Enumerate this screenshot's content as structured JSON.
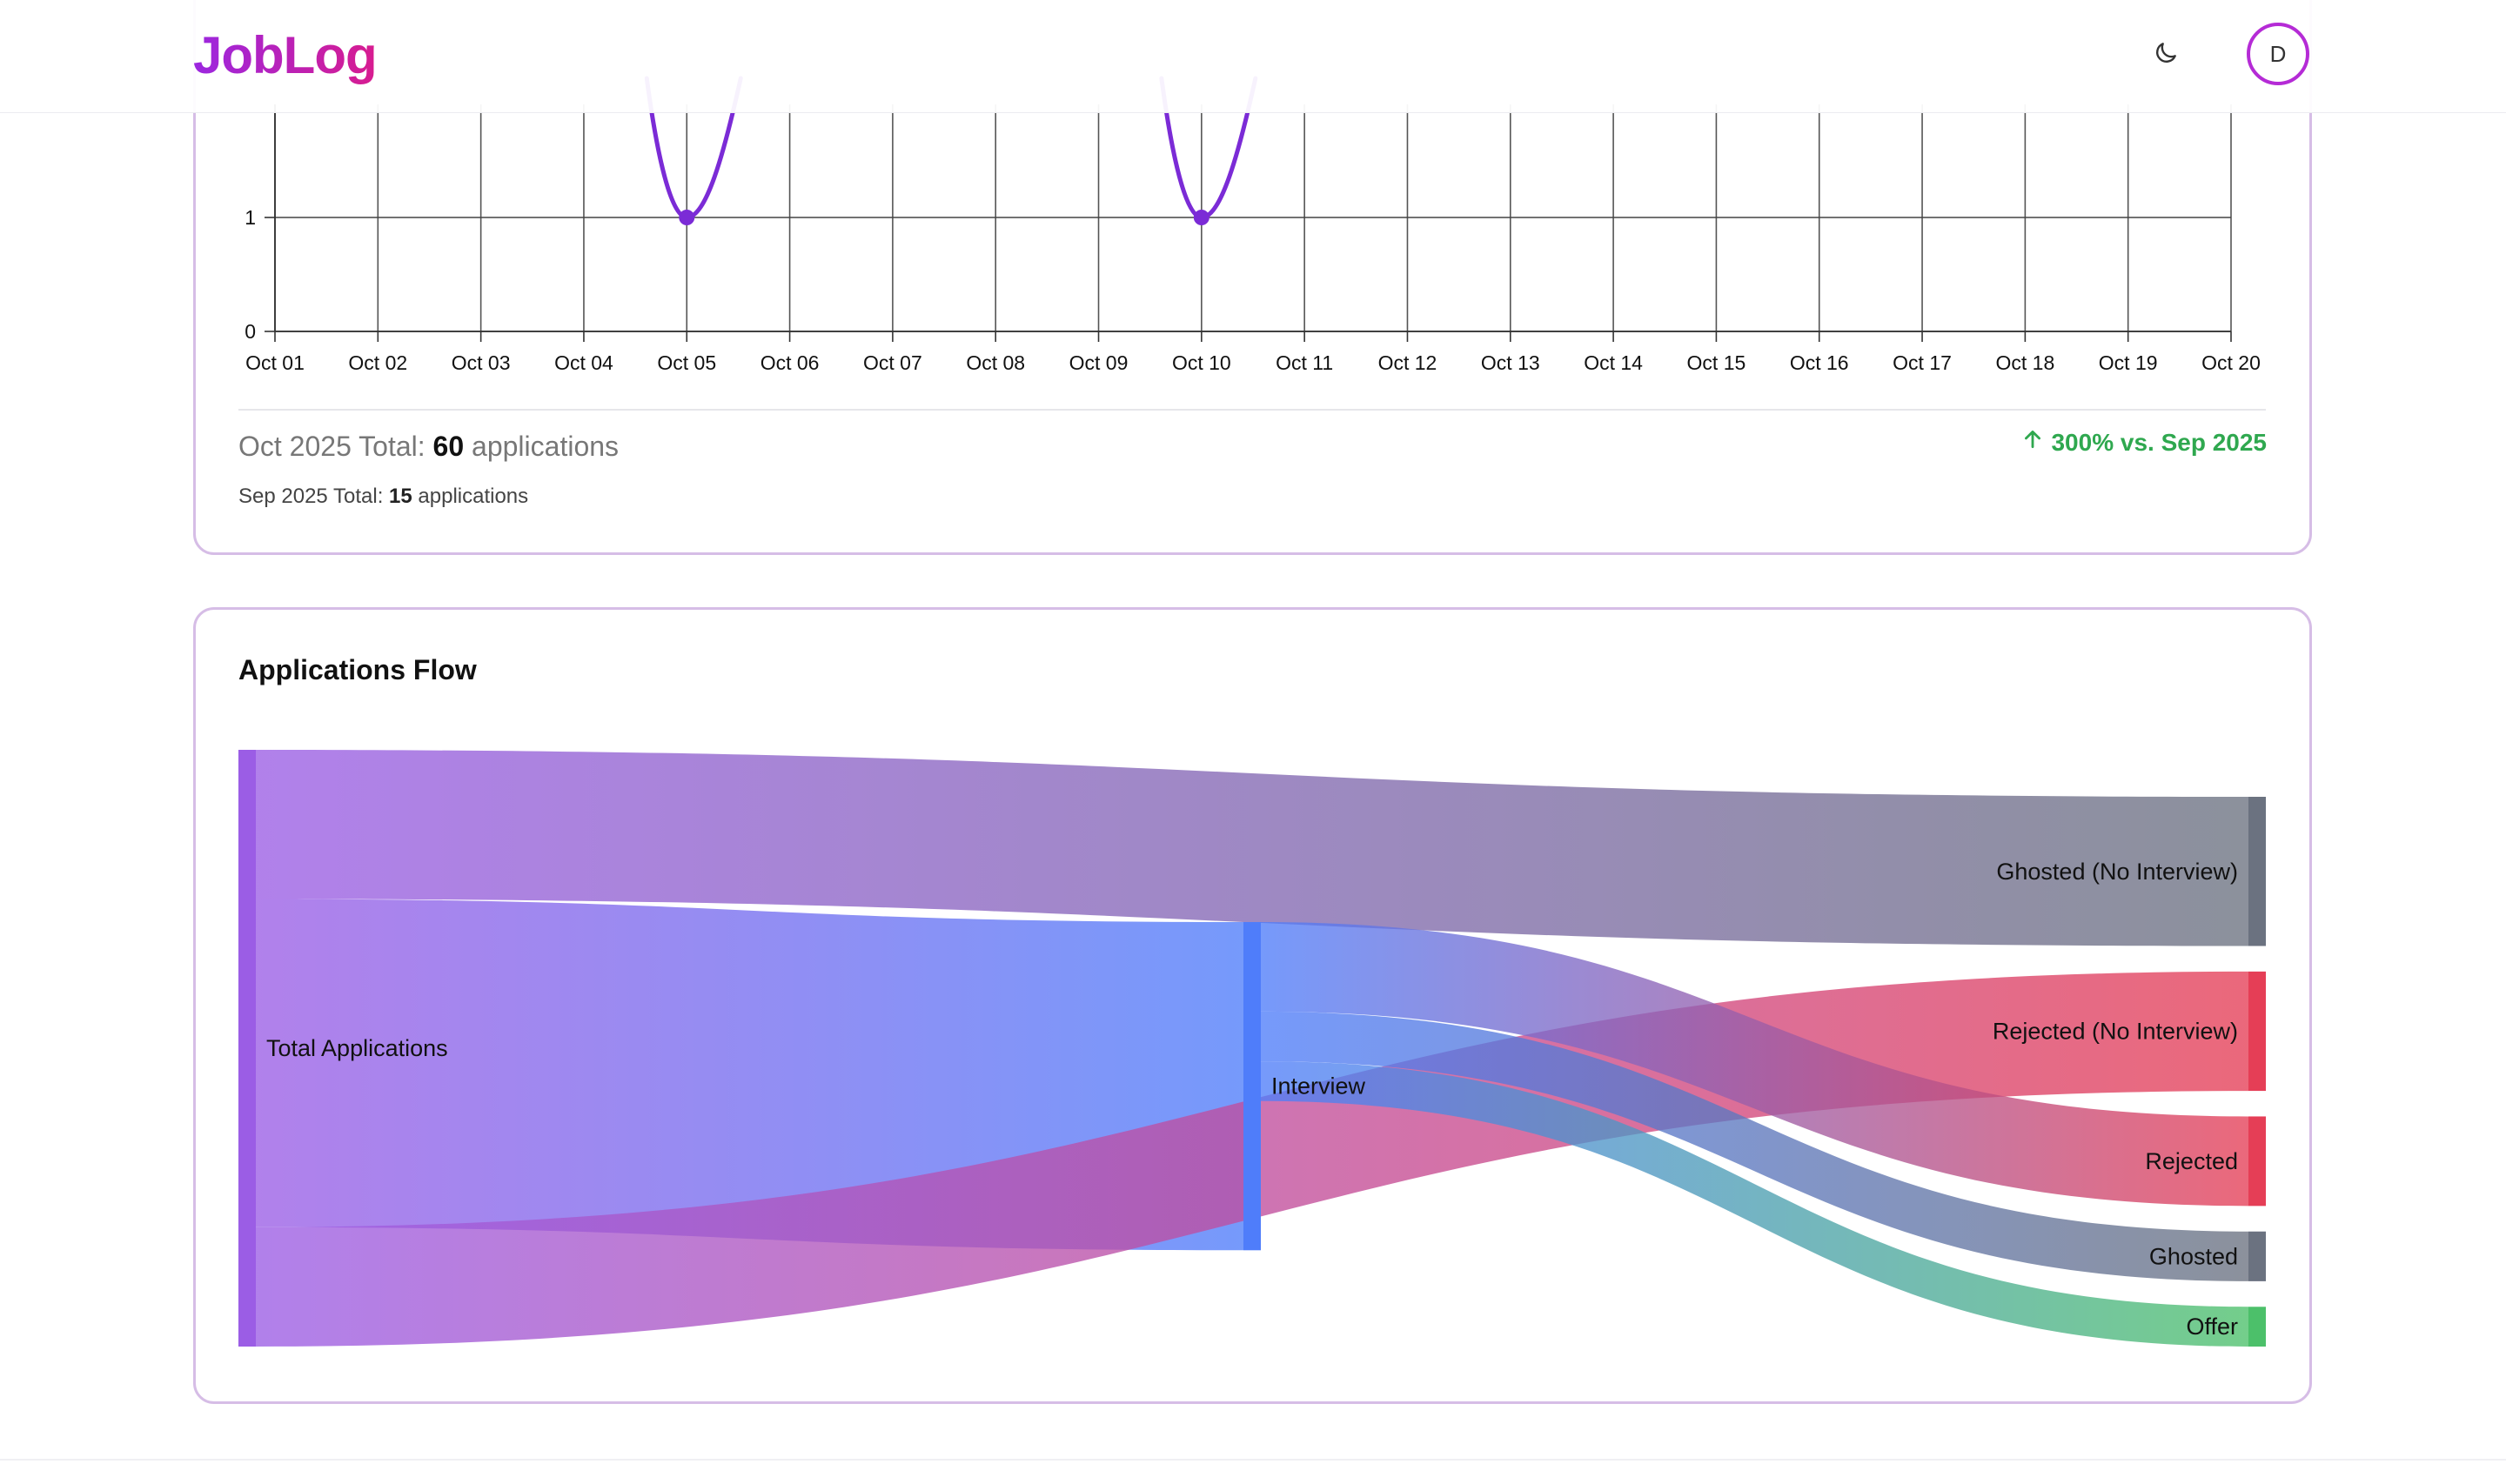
{
  "app": {
    "logo": "JobLog",
    "avatar_initial": "D"
  },
  "icons": {
    "theme": "moon-icon",
    "change": "arrow-up-icon"
  },
  "colors": {
    "brand_start": "#9b27e0",
    "brand_end": "#d81c8f",
    "line": "#7b2bd6",
    "positive": "#2fa84f",
    "total": "#9b5de5",
    "interview": "#4f7dfa",
    "ghosted": "#6b7280",
    "rejected": "#e53e56",
    "offer": "#4cc06a"
  },
  "chart_data": [
    {
      "type": "line",
      "x": [
        "Oct 01",
        "Oct 02",
        "Oct 03",
        "Oct 04",
        "Oct 05",
        "Oct 06",
        "Oct 07",
        "Oct 08",
        "Oct 09",
        "Oct 10",
        "Oct 11",
        "Oct 12",
        "Oct 13",
        "Oct 14",
        "Oct 15",
        "Oct 16",
        "Oct 17",
        "Oct 18",
        "Oct 19",
        "Oct 20"
      ],
      "visible_points": [
        {
          "x": "Oct 05",
          "y": 1
        },
        {
          "x": "Oct 10",
          "y": 1
        }
      ],
      "y_ticks": [
        0,
        1
      ],
      "grid": true
    },
    {
      "type": "sankey",
      "title": "Applications Flow",
      "nodes": [
        "Total Applications",
        "Interview",
        "Ghosted (No Interview)",
        "Rejected (No Interview)",
        "Rejected",
        "Ghosted",
        "Offer"
      ],
      "links": [
        {
          "source": "Total Applications",
          "target": "Ghosted (No Interview)",
          "value": 15
        },
        {
          "source": "Total Applications",
          "target": "Interview",
          "value": 33
        },
        {
          "source": "Total Applications",
          "target": "Rejected (No Interview)",
          "value": 12
        },
        {
          "source": "Interview",
          "target": "Rejected",
          "value": 9
        },
        {
          "source": "Interview",
          "target": "Ghosted",
          "value": 5
        },
        {
          "source": "Interview",
          "target": "Offer",
          "value": 4
        }
      ]
    }
  ],
  "summary": {
    "current_label": "Oct 2025 Total: ",
    "current_value": "60",
    "current_suffix": " applications",
    "prev_label": "Sep 2025 Total: ",
    "prev_value": "15",
    "prev_suffix": " applications",
    "change_text": "300% vs. Sep 2025"
  }
}
